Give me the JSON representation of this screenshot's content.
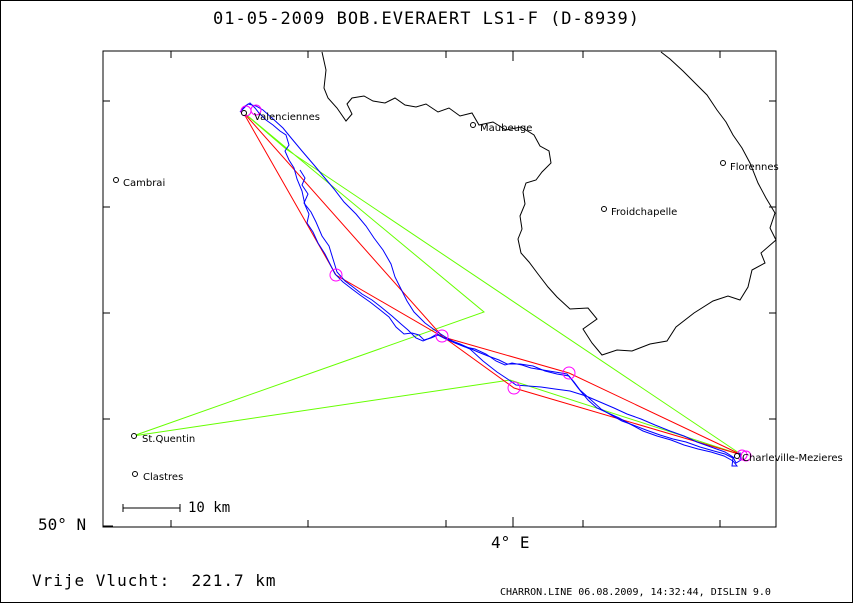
{
  "title": "01-05-2009   BOB.EVERAERT   LS1-F (D-8939)",
  "axes": {
    "lat_label": "50° N",
    "lon_label": "4° E"
  },
  "towns": [
    {
      "id": "valenciennes",
      "name": "Valenciennes"
    },
    {
      "id": "maubeuge",
      "name": "Maubeuge"
    },
    {
      "id": "cambrai",
      "name": "Cambrai"
    },
    {
      "id": "florennes",
      "name": "Florennes"
    },
    {
      "id": "froidchapelle",
      "name": "Froidchapelle"
    },
    {
      "id": "st-quentin",
      "name": "St.Quentin"
    },
    {
      "id": "clastres",
      "name": "Clastres"
    },
    {
      "id": "charleville",
      "name": "Charleville-Mezieres"
    }
  ],
  "scale": {
    "label": "10 km"
  },
  "distance": {
    "label": "Vrije Vlucht:",
    "value": "221.7 km"
  },
  "footer": "CHARRON.LINE 06.08.2009, 14:32:44, DISLIN 9.0",
  "colors": {
    "track": "#0000ff",
    "task": "#ff0000",
    "declared": "#66ff00",
    "turnpoint": "#ff00ff",
    "border": "#000000"
  }
}
